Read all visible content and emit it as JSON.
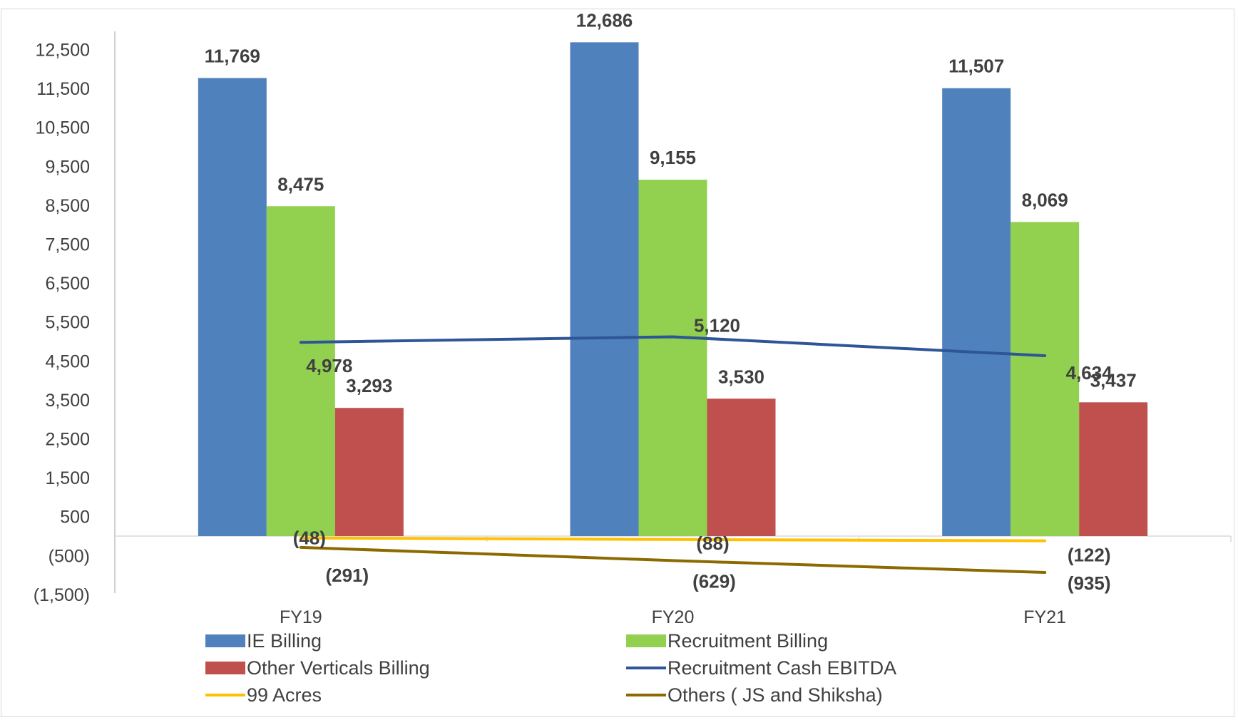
{
  "chart_data": {
    "type": "bar",
    "categories": [
      "FY19",
      "FY20",
      "FY21"
    ],
    "ylim": [
      -1500,
      13000
    ],
    "y_ticks": [
      "12,500",
      "11,500",
      "10,500",
      "9,500",
      "8,500",
      "7,500",
      "6,500",
      "5,500",
      "4,500",
      "3,500",
      "2,500",
      "1,500",
      "500",
      "(500)",
      "(1,500)"
    ],
    "y_tick_values": [
      12500,
      11500,
      10500,
      9500,
      8500,
      7500,
      6500,
      5500,
      4500,
      3500,
      2500,
      1500,
      500,
      -500,
      -1500
    ],
    "series": [
      {
        "name": "IE Billing",
        "kind": "bar",
        "color": "#4f81bd",
        "values": [
          11769,
          12686,
          11507
        ],
        "labels": [
          "11,769",
          "12,686",
          "11,507"
        ]
      },
      {
        "name": "Recruitment Billing",
        "kind": "bar",
        "color": "#92d050",
        "values": [
          8475,
          9155,
          8069
        ],
        "labels": [
          "8,475",
          "9,155",
          "8,069"
        ]
      },
      {
        "name": "Other Verticals Billing",
        "kind": "bar",
        "color": "#c0504d",
        "values": [
          3293,
          3530,
          3437
        ],
        "labels": [
          "3,293",
          "3,530",
          "3,437"
        ]
      },
      {
        "name": "Recruitment Cash EBITDA",
        "kind": "line",
        "color": "#2e5597",
        "values": [
          4978,
          5120,
          4634
        ],
        "labels": [
          "4,978",
          "5,120",
          "4,634"
        ]
      },
      {
        "name": "99 Acres",
        "kind": "line",
        "color": "#ffc000",
        "values": [
          -48,
          -88,
          -122
        ],
        "labels": [
          "(48)",
          "(88)",
          "(122)"
        ]
      },
      {
        "name": "Others ( JS and Shiksha)",
        "kind": "line",
        "color": "#8c6a00",
        "values": [
          -291,
          -629,
          -935
        ],
        "labels": [
          "(291)",
          "(629)",
          "(935)"
        ]
      }
    ],
    "grid": false,
    "legend_position": "bottom"
  }
}
